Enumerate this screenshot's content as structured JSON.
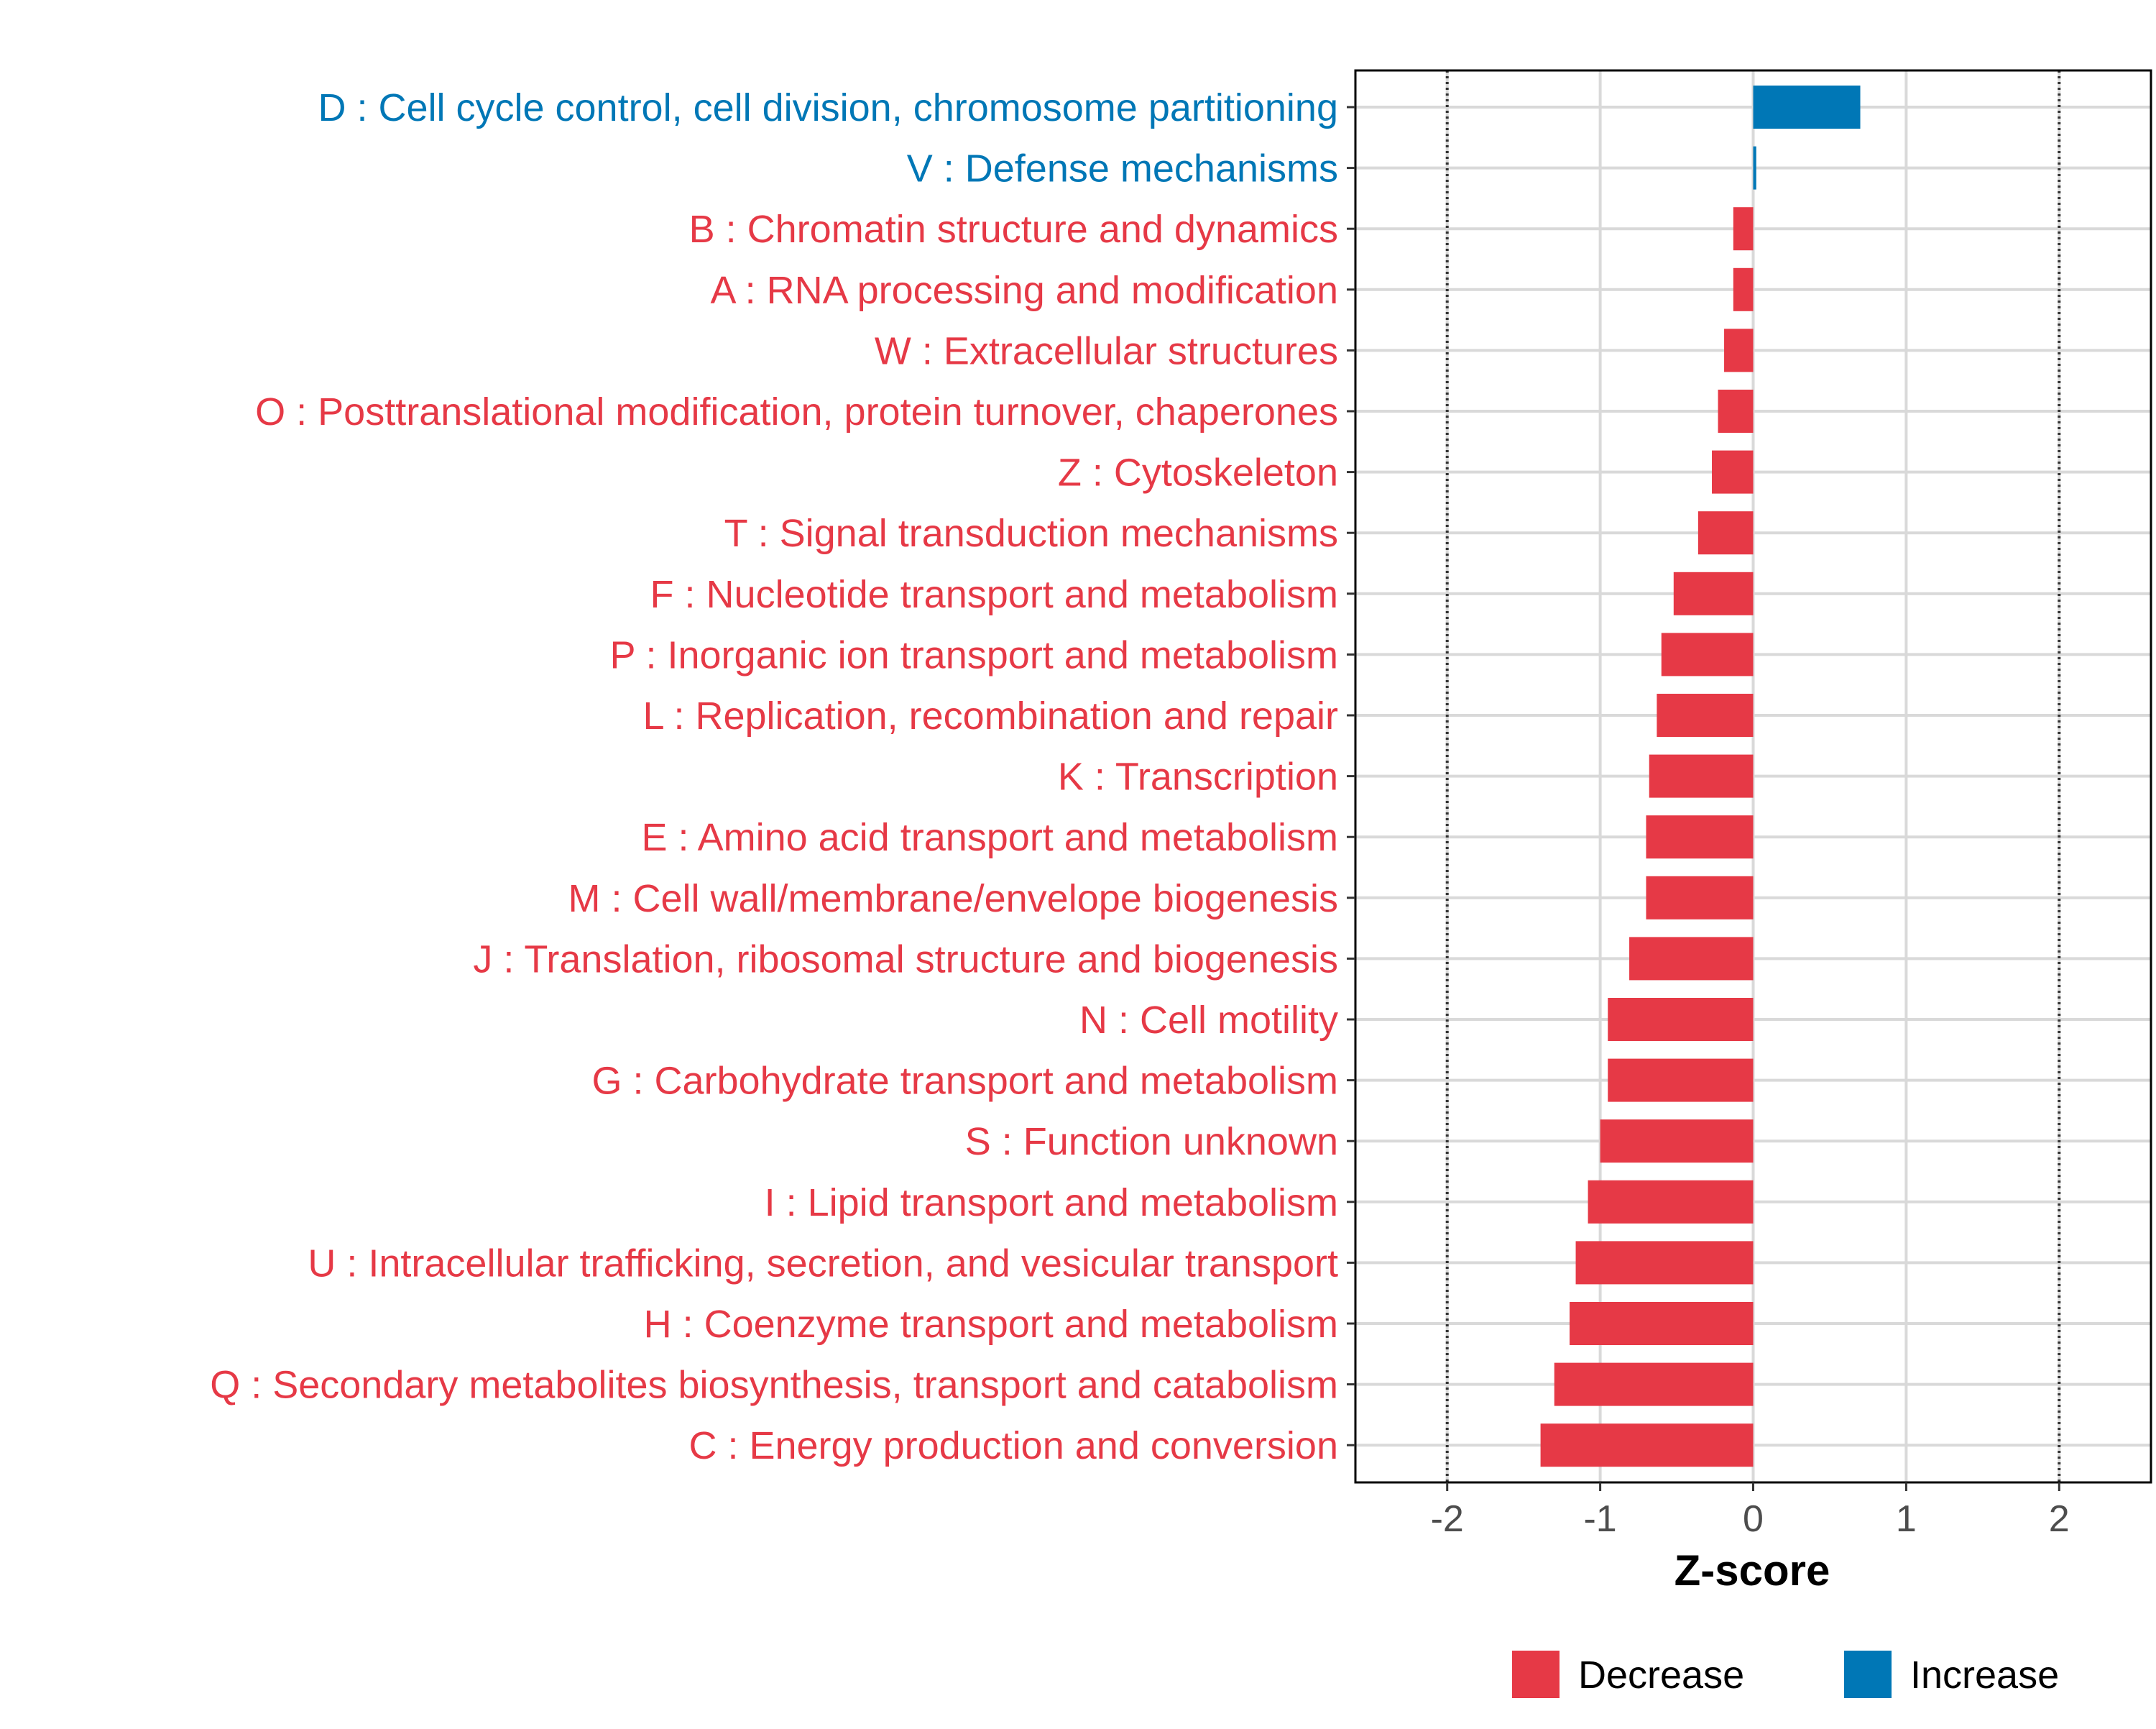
{
  "chart_data": {
    "type": "bar",
    "orientation": "horizontal",
    "title": "",
    "xlabel": "Z-score",
    "ylabel": "",
    "xlim": [
      -2.6,
      2.6
    ],
    "xticks": [
      -2,
      -1,
      0,
      1,
      2
    ],
    "xtick_labels": [
      "-2",
      "-1",
      "0",
      "1",
      "2"
    ],
    "reference_lines": [
      -2,
      2
    ],
    "grid": true,
    "legend": {
      "placement": "bottom",
      "entries": [
        {
          "key": "decrease",
          "label": "Decrease",
          "color": "#E63946"
        },
        {
          "key": "increase",
          "label": "Increase",
          "color": "#0077B6"
        }
      ]
    },
    "categories": [
      {
        "label": "D : Cell cycle control, cell division, chromosome partitioning",
        "value": 0.7,
        "direction": "increase"
      },
      {
        "label": "V : Defense mechanisms",
        "value": 0.02,
        "direction": "increase"
      },
      {
        "label": "B : Chromatin structure and dynamics",
        "value": -0.13,
        "direction": "decrease"
      },
      {
        "label": "A : RNA processing and modification",
        "value": -0.13,
        "direction": "decrease"
      },
      {
        "label": "W : Extracellular structures",
        "value": -0.19,
        "direction": "decrease"
      },
      {
        "label": "O : Posttranslational modification, protein turnover, chaperones",
        "value": -0.23,
        "direction": "decrease"
      },
      {
        "label": "Z : Cytoskeleton",
        "value": -0.27,
        "direction": "decrease"
      },
      {
        "label": "T : Signal transduction mechanisms",
        "value": -0.36,
        "direction": "decrease"
      },
      {
        "label": "F : Nucleotide transport and metabolism",
        "value": -0.52,
        "direction": "decrease"
      },
      {
        "label": "P : Inorganic ion transport and metabolism",
        "value": -0.6,
        "direction": "decrease"
      },
      {
        "label": "L : Replication, recombination and repair",
        "value": -0.63,
        "direction": "decrease"
      },
      {
        "label": "K : Transcription",
        "value": -0.68,
        "direction": "decrease"
      },
      {
        "label": "E : Amino acid transport and metabolism",
        "value": -0.7,
        "direction": "decrease"
      },
      {
        "label": "M : Cell wall/membrane/envelope biogenesis",
        "value": -0.7,
        "direction": "decrease"
      },
      {
        "label": "J : Translation, ribosomal structure and biogenesis",
        "value": -0.81,
        "direction": "decrease"
      },
      {
        "label": "N : Cell motility",
        "value": -0.95,
        "direction": "decrease"
      },
      {
        "label": "G : Carbohydrate transport and metabolism",
        "value": -0.95,
        "direction": "decrease"
      },
      {
        "label": "S : Function unknown",
        "value": -1.0,
        "direction": "decrease"
      },
      {
        "label": "I : Lipid transport and metabolism",
        "value": -1.08,
        "direction": "decrease"
      },
      {
        "label": "U : Intracellular trafficking, secretion, and vesicular transport",
        "value": -1.16,
        "direction": "decrease"
      },
      {
        "label": "H : Coenzyme transport and metabolism",
        "value": -1.2,
        "direction": "decrease"
      },
      {
        "label": "Q : Secondary metabolites biosynthesis, transport and catabolism",
        "value": -1.3,
        "direction": "decrease"
      },
      {
        "label": "C : Energy production and conversion",
        "value": -1.39,
        "direction": "decrease"
      }
    ]
  }
}
